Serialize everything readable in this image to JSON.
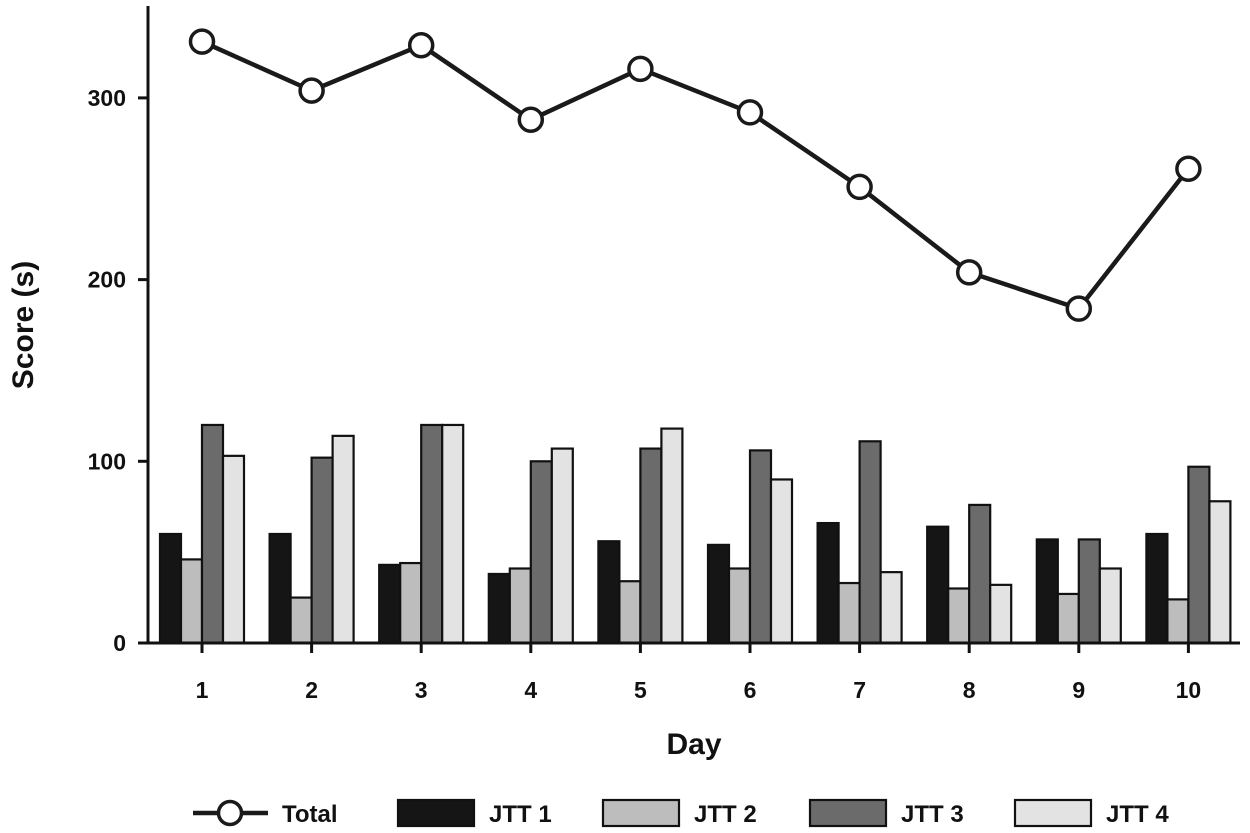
{
  "chart_data": {
    "type": "bar+line",
    "xlabel": "Day",
    "ylabel": "Score (s)",
    "ylim": [
      0,
      350
    ],
    "yticks": [
      0,
      100,
      200,
      300
    ],
    "categories": [
      "1",
      "2",
      "3",
      "4",
      "5",
      "6",
      "7",
      "8",
      "9",
      "10"
    ],
    "series": [
      {
        "name": "Total",
        "kind": "line",
        "marker": "open-circle",
        "color": "#1a1a1a",
        "values": [
          331,
          304,
          329,
          288,
          316,
          292,
          251,
          204,
          184,
          261
        ]
      },
      {
        "name": "JTT 1",
        "kind": "bar",
        "color": "#151515",
        "values": [
          60,
          60,
          43,
          38,
          56,
          54,
          66,
          64,
          57,
          60
        ]
      },
      {
        "name": "JTT 2",
        "kind": "bar",
        "color": "#bdbdbd",
        "values": [
          46,
          25,
          44,
          41,
          34,
          41,
          33,
          30,
          27,
          24
        ]
      },
      {
        "name": "JTT 3",
        "kind": "bar",
        "color": "#6b6b6b",
        "values": [
          120,
          102,
          120,
          100,
          107,
          106,
          111,
          76,
          57,
          97
        ]
      },
      {
        "name": "JTT 4",
        "kind": "bar",
        "color": "#e3e3e3",
        "values": [
          103,
          114,
          120,
          107,
          118,
          90,
          39,
          32,
          41,
          78
        ]
      }
    ],
    "legend_position": "bottom"
  }
}
